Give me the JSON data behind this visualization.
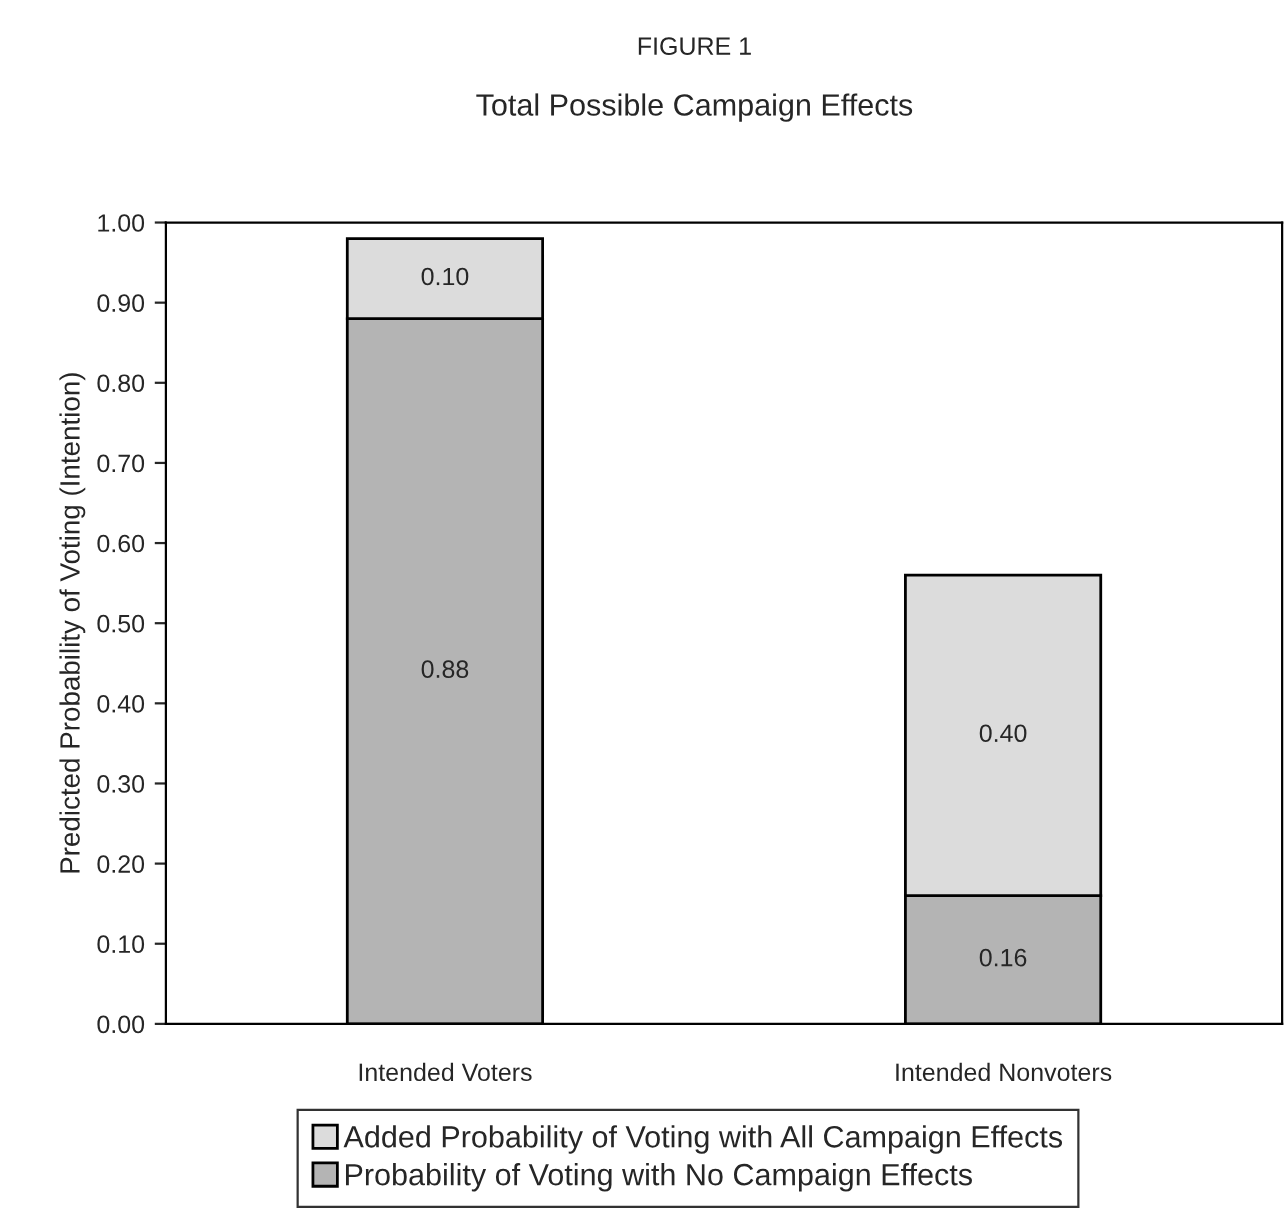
{
  "chart_data": {
    "type": "bar",
    "title": "FIGURE 1",
    "subtitle": "Total Possible Campaign Effects",
    "ylabel": "Predicted Probability of Voting (Intention)",
    "categories": [
      "Intended Voters",
      "Intended Nonvoters"
    ],
    "stacked": true,
    "series": [
      {
        "name": "Probability of Voting with No Campaign Effects",
        "color": "#b4b4b4",
        "values": [
          0.88,
          0.16
        ],
        "value_labels": [
          "0.88",
          "0.16"
        ]
      },
      {
        "name": "Added Probability of Voting with All Campaign Effects",
        "color": "#dcdcdc",
        "values": [
          0.1,
          0.4
        ],
        "value_labels": [
          "0.10",
          "0.40"
        ]
      }
    ],
    "ylim": [
      0,
      1.0
    ],
    "yticks": [
      {
        "value": 0,
        "label": "0.00"
      },
      {
        "value": 0.1,
        "label": "0.10"
      },
      {
        "value": 0.2,
        "label": "0.20"
      },
      {
        "value": 0.3,
        "label": "0.30"
      },
      {
        "value": 0.4,
        "label": "0.40"
      },
      {
        "value": 0.5,
        "label": "0.50"
      },
      {
        "value": 0.6,
        "label": "0.60"
      },
      {
        "value": 0.7,
        "label": "0.70"
      },
      {
        "value": 0.8,
        "label": "0.80"
      },
      {
        "value": 0.9,
        "label": "0.90"
      },
      {
        "value": 1.0,
        "label": "1.00"
      }
    ],
    "grid": false,
    "legend": "bottom"
  }
}
